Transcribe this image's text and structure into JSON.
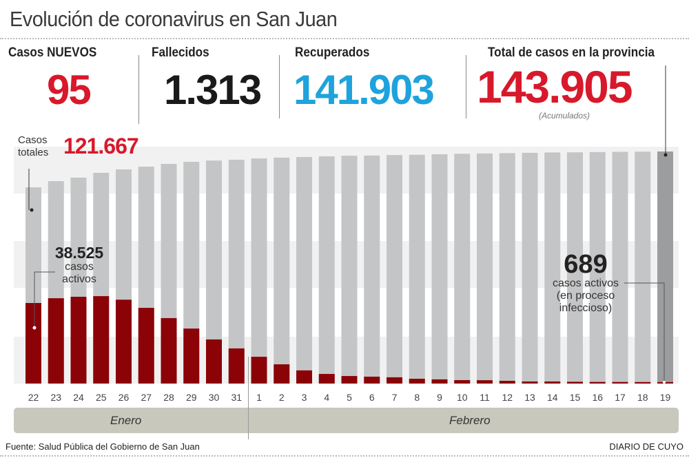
{
  "title": "Evolución de coronavirus en San Juan",
  "stats": {
    "new_cases": {
      "label": "Casos NUEVOS",
      "value": "95",
      "color": "#d7192b"
    },
    "deaths": {
      "label": "Fallecidos",
      "value": "1.313",
      "color": "#1a1a1a"
    },
    "recovered": {
      "label": "Recuperados",
      "value": "141.903",
      "color": "#1ea3dc"
    },
    "total": {
      "label": "Total de casos en la provincia",
      "value": "143.905",
      "note": "(Acumulados)",
      "color": "#d7192b"
    }
  },
  "annotations": {
    "total_label_1": "Casos",
    "total_label_2": "totales",
    "total_value": "121.667",
    "active_start_value": "38.525",
    "active_start_1": "casos",
    "active_start_2": "activos",
    "active_end_value": "689",
    "active_end_1": "casos activos",
    "active_end_2": "(en proceso",
    "active_end_3": "infeccioso)"
  },
  "months": {
    "jan": "Enero",
    "feb": "Febrero"
  },
  "footer": {
    "source": "Fuente: Salud Pública del Gobierno de San Juan",
    "brand": "DIARIO DE CUYO"
  },
  "chart_data": {
    "type": "bar",
    "categories": [
      "22",
      "23",
      "24",
      "25",
      "26",
      "27",
      "28",
      "29",
      "30",
      "31",
      "1",
      "2",
      "3",
      "4",
      "5",
      "6",
      "7",
      "8",
      "9",
      "10",
      "11",
      "12",
      "13",
      "14",
      "15",
      "16",
      "17",
      "18",
      "19"
    ],
    "series": [
      {
        "name": "Casos totales",
        "color": "#c4c5c7",
        "highlight_color": "#9c9d9f",
        "values": [
          121667,
          125500,
          127700,
          130700,
          132800,
          134500,
          136200,
          137500,
          138300,
          138800,
          139600,
          140100,
          140500,
          140900,
          141300,
          141400,
          141700,
          141900,
          142200,
          142500,
          142700,
          142900,
          143100,
          143300,
          143400,
          143550,
          143700,
          143800,
          143905
        ]
      },
      {
        "name": "casos activos",
        "color": "#8c0307",
        "values": [
          38525,
          40800,
          41500,
          41800,
          40100,
          36200,
          31300,
          26300,
          21100,
          16800,
          12800,
          9200,
          6300,
          4600,
          3600,
          3300,
          3000,
          2300,
          2000,
          1650,
          1600,
          1300,
          1000,
          1000,
          850,
          780,
          750,
          720,
          689
        ]
      }
    ],
    "grid": false,
    "legend": "none"
  }
}
